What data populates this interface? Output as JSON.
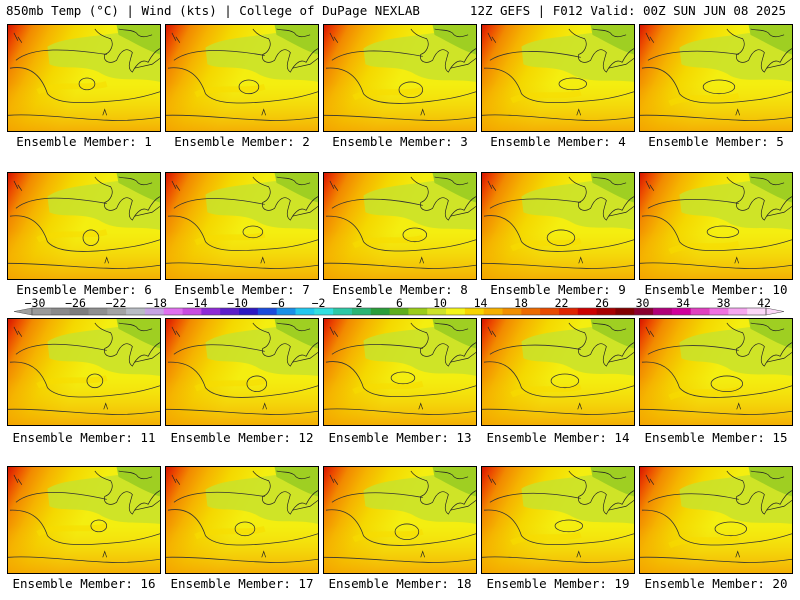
{
  "header": {
    "left": "850mb Temp (°C) | Wind (kts) | College of DuPage NEXLAB",
    "right": "12Z GEFS | F012 Valid: 00Z SUN JUN 08 2025"
  },
  "panels": [
    {
      "label": "Ensemble Member: 1"
    },
    {
      "label": "Ensemble Member: 2"
    },
    {
      "label": "Ensemble Member: 3"
    },
    {
      "label": "Ensemble Member: 4"
    },
    {
      "label": "Ensemble Member: 5"
    },
    {
      "label": "Ensemble Member: 6"
    },
    {
      "label": "Ensemble Member: 7"
    },
    {
      "label": "Ensemble Member: 8"
    },
    {
      "label": "Ensemble Member: 9"
    },
    {
      "label": "Ensemble Member: 10"
    },
    {
      "label": "Ensemble Member: 11"
    },
    {
      "label": "Ensemble Member: 12"
    },
    {
      "label": "Ensemble Member: 13"
    },
    {
      "label": "Ensemble Member: 14"
    },
    {
      "label": "Ensemble Member: 15"
    },
    {
      "label": "Ensemble Member: 16"
    },
    {
      "label": "Ensemble Member: 17"
    },
    {
      "label": "Ensemble Member: 18"
    },
    {
      "label": "Ensemble Member: 19"
    },
    {
      "label": "Ensemble Member: 20"
    }
  ],
  "colorbar": {
    "labels": [
      "−30",
      "−26",
      "−22",
      "−18",
      "−14",
      "−10",
      "−6",
      "−2",
      "2",
      "6",
      "10",
      "14",
      "18",
      "22",
      "26",
      "30",
      "34",
      "38",
      "42"
    ],
    "colors": [
      "#9a9a9a",
      "#8a8a8a",
      "#7d7d7d",
      "#8f8f8f",
      "#a3a3a3",
      "#b8bcc4",
      "#c6a3e2",
      "#e070ee",
      "#c94be0",
      "#8e2ad6",
      "#5c1ec9",
      "#2d18c2",
      "#1b4bdc",
      "#1890e8",
      "#22c7ee",
      "#33dfe0",
      "#2ec8a5",
      "#2cb574",
      "#2b9e3a",
      "#5fae1c",
      "#9bcc1a",
      "#cde22a",
      "#f4f41a",
      "#f7d400",
      "#f5b000",
      "#f18f00",
      "#ec6a00",
      "#e84a00",
      "#e02400",
      "#cc0000",
      "#a80000",
      "#820000",
      "#8a0030",
      "#b0007a",
      "#d0009c",
      "#e040c0",
      "#f070e0",
      "#f6a6f0",
      "#fbd6f8"
    ]
  }
}
